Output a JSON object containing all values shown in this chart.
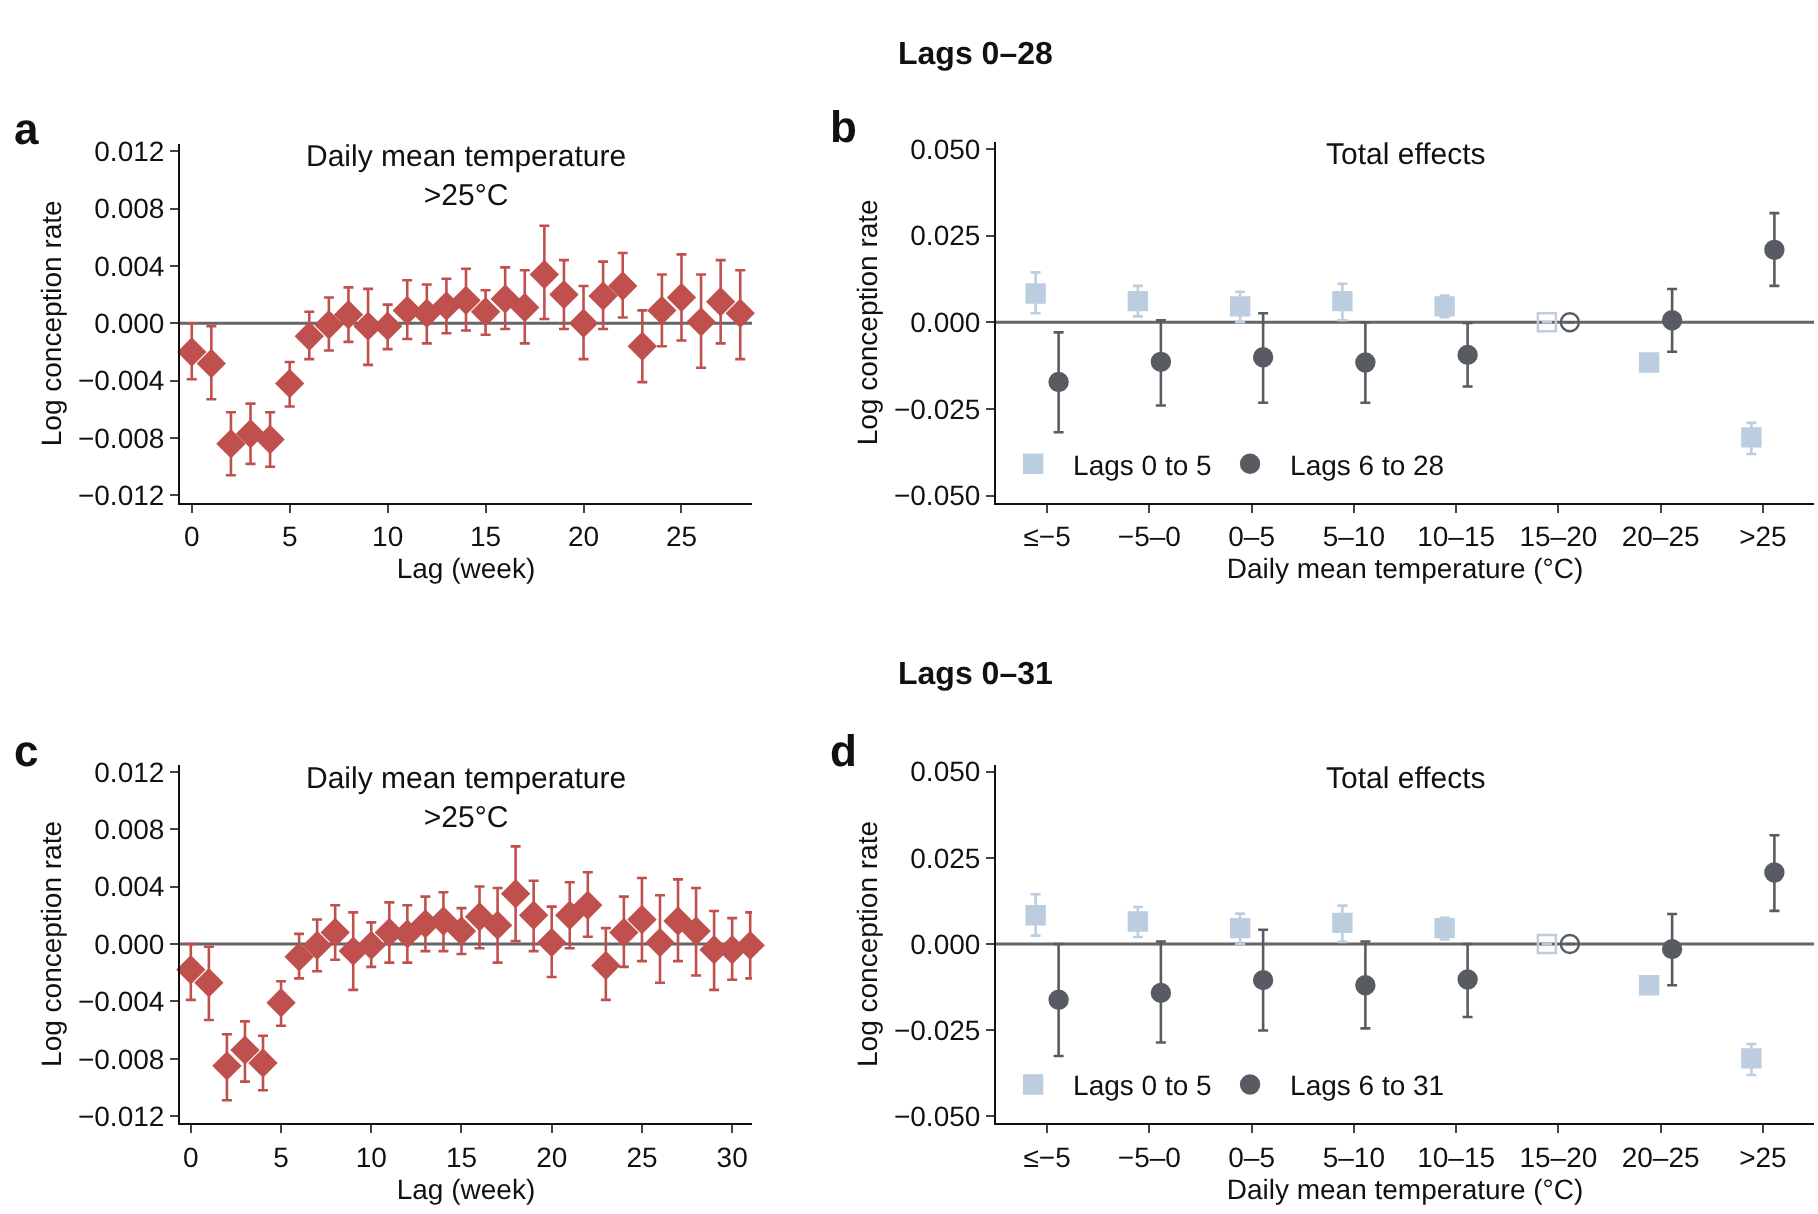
{
  "chart_data": [
    {
      "type": "scatter",
      "title": "Daily mean temperature\n>25°C",
      "xlabel": "Lag (week)",
      "ylabel": "Log conception rate",
      "annotations": [
        "a",
        "Lags 0–28"
      ],
      "x": [
        0,
        1,
        2,
        3,
        4,
        5,
        6,
        7,
        8,
        9,
        10,
        11,
        12,
        13,
        14,
        15,
        16,
        17,
        18,
        19,
        20,
        21,
        22,
        23,
        24,
        25,
        26,
        27,
        28
      ],
      "series": [
        {
          "color": "#c0504d",
          "marker": "diamond",
          "values": [
            -0.002,
            -0.0028,
            -0.0084,
            -0.0077,
            -0.0081,
            -0.0042,
            -0.0009,
            -0.0001,
            0.0006,
            -0.0002,
            -0.0002,
            0.0009,
            0.0007,
            0.0012,
            0.0016,
            0.0008,
            0.0017,
            0.0011,
            0.0034,
            0.002,
            0.0,
            0.0019,
            0.0026,
            -0.0016,
            0.0009,
            0.0018,
            0.0001,
            0.0015,
            0.0007
          ],
          "errors": [
            [
              -0.0039,
              0.0
            ],
            [
              -0.0053,
              -0.0002
            ],
            [
              -0.0106,
              -0.0062
            ],
            [
              -0.0098,
              -0.0056
            ],
            [
              -0.01,
              -0.0062
            ],
            [
              -0.0058,
              -0.0027
            ],
            [
              -0.0025,
              0.0008
            ],
            [
              -0.0019,
              0.0018
            ],
            [
              -0.0013,
              0.0025
            ],
            [
              -0.0029,
              0.0024
            ],
            [
              -0.0018,
              0.0013
            ],
            [
              -0.0011,
              0.003
            ],
            [
              -0.0014,
              0.0027
            ],
            [
              -0.0007,
              0.0031
            ],
            [
              -0.0005,
              0.0038
            ],
            [
              -0.0008,
              0.0023
            ],
            [
              -0.0004,
              0.0039
            ],
            [
              -0.0014,
              0.0037
            ],
            [
              0.0003,
              0.0068
            ],
            [
              -0.0004,
              0.0044
            ],
            [
              -0.0025,
              0.0026
            ],
            [
              -0.0004,
              0.0043
            ],
            [
              0.0004,
              0.0049
            ],
            [
              -0.0041,
              0.0009
            ],
            [
              -0.0016,
              0.0034
            ],
            [
              -0.0012,
              0.0048
            ],
            [
              -0.0031,
              0.0034
            ],
            [
              -0.0014,
              0.0044
            ],
            [
              -0.0025,
              0.0037
            ]
          ]
        }
      ],
      "xlim": [
        -0.6,
        28.6
      ],
      "xticks": [
        0,
        5,
        10,
        15,
        20,
        25
      ],
      "ylim": [
        -0.0125,
        0.0125
      ],
      "yticks": [
        {
          "value": -0.012,
          "label": "−0.012"
        },
        {
          "value": -0.008,
          "label": "−0.008"
        },
        {
          "value": -0.004,
          "label": "−0.004"
        },
        {
          "value": 0,
          "label": "0.000"
        },
        {
          "value": 0.004,
          "label": "0.004"
        },
        {
          "value": 0.008,
          "label": "0.008"
        },
        {
          "value": 0.012,
          "label": "0.012"
        }
      ],
      "ref_lines": [
        {
          "axis": "y",
          "value": 0,
          "color": "#666666"
        }
      ],
      "grid": false,
      "legend": false
    },
    {
      "type": "scatter",
      "title": "Total effects",
      "xlabel": "Daily mean temperature (°C)",
      "ylabel": "Log conception rate",
      "annotations": [
        "b"
      ],
      "categories": [
        "≤−5",
        "−5–0",
        "0–5",
        "5–10",
        "10–15",
        "15–20",
        "20–25",
        ">25"
      ],
      "series": [
        {
          "name": "Lags 0 to 5",
          "color": "#bccde0",
          "marker": "square",
          "values": [
            0.0083,
            0.0061,
            0.0046,
            0.0061,
            0.0046,
            0,
            -0.0116,
            -0.0332
          ],
          "errors": [
            [
              0.0026,
              0.0144
            ],
            [
              0.0017,
              0.0105
            ],
            [
              0.0,
              0.0088
            ],
            [
              0.0006,
              0.0111
            ],
            [
              0.0015,
              0.0077
            ],
            null,
            null,
            [
              -0.038,
              -0.029
            ]
          ]
        },
        {
          "name": "Lags 6 to 28",
          "color": "#595b63",
          "marker": "circle",
          "values": [
            -0.0172,
            -0.0114,
            -0.0101,
            -0.0116,
            -0.0094,
            0,
            0.0006,
            0.0209
          ],
          "errors": [
            [
              -0.0317,
              -0.0029
            ],
            [
              -0.024,
              0.0006
            ],
            [
              -0.0232,
              0.0026
            ],
            [
              -0.0232,
              0.0
            ],
            [
              -0.0185,
              -0.0002
            ],
            null,
            [
              -0.0085,
              0.0096
            ],
            [
              0.0105,
              0.0315
            ]
          ]
        }
      ],
      "ylim": [
        -0.052,
        0.052
      ],
      "yticks": [
        {
          "value": -0.05,
          "label": "−0.050"
        },
        {
          "value": -0.025,
          "label": "−0.025"
        },
        {
          "value": 0,
          "label": "0.000"
        },
        {
          "value": 0.025,
          "label": "0.025"
        },
        {
          "value": 0.05,
          "label": "0.050"
        }
      ],
      "ref_lines": [
        {
          "axis": "y",
          "value": 0,
          "color": "#666666"
        }
      ],
      "grid": false,
      "legend": "bottom left"
    },
    {
      "type": "scatter",
      "title": "Daily mean temperature\n>25°C",
      "xlabel": "Lag (week)",
      "ylabel": "Log conception rate",
      "annotations": [
        "c",
        "Lags 0–31"
      ],
      "x": [
        0,
        1,
        2,
        3,
        4,
        5,
        6,
        7,
        8,
        9,
        10,
        11,
        12,
        13,
        14,
        15,
        16,
        17,
        18,
        19,
        20,
        21,
        22,
        23,
        24,
        25,
        26,
        27,
        28,
        29,
        30,
        31
      ],
      "series": [
        {
          "color": "#c0504d",
          "marker": "diamond",
          "values": [
            -0.0018,
            -0.0027,
            -0.0085,
            -0.0074,
            -0.0083,
            -0.0041,
            -0.0009,
            -0.0001,
            0.0008,
            -0.0005,
            -0.0001,
            0.0008,
            0.0007,
            0.0014,
            0.0016,
            0.0009,
            0.0019,
            0.0013,
            0.0035,
            0.002,
            0.0001,
            0.002,
            0.0027,
            -0.0015,
            0.0008,
            0.0017,
            0.0001,
            0.0016,
            0.0009,
            -0.0004,
            -0.0004,
            -0.0001
          ],
          "errors": [
            [
              -0.0039,
              0.0
            ],
            [
              -0.0053,
              -0.0002
            ],
            [
              -0.0109,
              -0.0063
            ],
            [
              -0.0096,
              -0.0054
            ],
            [
              -0.0102,
              -0.0064
            ],
            [
              -0.0057,
              -0.0026
            ],
            [
              -0.0024,
              0.0007
            ],
            [
              -0.0019,
              0.0017
            ],
            [
              -0.0011,
              0.0027
            ],
            [
              -0.0032,
              0.0022
            ],
            [
              -0.0016,
              0.0015
            ],
            [
              -0.0013,
              0.0029
            ],
            [
              -0.0013,
              0.0027
            ],
            [
              -0.0005,
              0.0033
            ],
            [
              -0.0005,
              0.0036
            ],
            [
              -0.0007,
              0.0025
            ],
            [
              -0.0003,
              0.004
            ],
            [
              -0.0013,
              0.0039
            ],
            [
              0.0002,
              0.0068
            ],
            [
              -0.0005,
              0.0044
            ],
            [
              -0.0023,
              0.0026
            ],
            [
              -0.0003,
              0.0043
            ],
            [
              0.0005,
              0.005
            ],
            [
              -0.0039,
              0.0011
            ],
            [
              -0.0016,
              0.0033
            ],
            [
              -0.0012,
              0.0046
            ],
            [
              -0.0027,
              0.0034
            ],
            [
              -0.0012,
              0.0045
            ],
            [
              -0.0022,
              0.0039
            ],
            [
              -0.0032,
              0.0023
            ],
            [
              -0.0025,
              0.0018
            ],
            [
              -0.0024,
              0.0022
            ]
          ]
        }
      ],
      "xlim": [
        -0.6,
        31.1
      ],
      "xticks": [
        0,
        5,
        10,
        15,
        20,
        25,
        30
      ],
      "ylim": [
        -0.0125,
        0.0125
      ],
      "yticks": [
        {
          "value": -0.012,
          "label": "−0.012"
        },
        {
          "value": -0.008,
          "label": "−0.008"
        },
        {
          "value": -0.004,
          "label": "−0.004"
        },
        {
          "value": 0,
          "label": "0.000"
        },
        {
          "value": 0.004,
          "label": "0.004"
        },
        {
          "value": 0.008,
          "label": "0.008"
        },
        {
          "value": 0.012,
          "label": "0.012"
        }
      ],
      "ref_lines": [
        {
          "axis": "y",
          "value": 0,
          "color": "#666666"
        }
      ],
      "grid": false,
      "legend": false
    },
    {
      "type": "scatter",
      "title": "Total effects",
      "xlabel": "Daily mean temperature (°C)",
      "ylabel": "Log conception rate",
      "annotations": [
        "d"
      ],
      "categories": [
        "≤−5",
        "−5–0",
        "0–5",
        "5–10",
        "10–15",
        "15–20",
        "20–25",
        ">25"
      ],
      "series": [
        {
          "name": "Lags 0 to 5",
          "color": "#bccde0",
          "marker": "square",
          "values": [
            0.0083,
            0.0065,
            0.0046,
            0.0061,
            0.0046,
            0,
            -0.012,
            -0.0332
          ],
          "errors": [
            [
              0.0024,
              0.0144
            ],
            [
              0.002,
              0.0107
            ],
            [
              0.0,
              0.0088
            ],
            [
              0.0006,
              0.0111
            ],
            [
              0.0013,
              0.0076
            ],
            null,
            null,
            [
              -0.038,
              -0.029
            ]
          ]
        },
        {
          "name": "Lags 6 to 31",
          "color": "#595b63",
          "marker": "circle",
          "values": [
            -0.0162,
            -0.0142,
            -0.0105,
            -0.012,
            -0.0103,
            0,
            -0.0015,
            0.0207
          ],
          "errors": [
            [
              -0.0325,
              0.0
            ],
            [
              -0.0286,
              0.0007
            ],
            [
              -0.0251,
              0.0041
            ],
            [
              -0.0245,
              0.0007
            ],
            [
              -0.0212,
              0.0
            ],
            null,
            [
              -0.012,
              0.0087
            ],
            [
              0.0096,
              0.0315
            ]
          ]
        }
      ],
      "ylim": [
        -0.052,
        0.052
      ],
      "yticks": [
        {
          "value": -0.05,
          "label": "−0.050"
        },
        {
          "value": -0.025,
          "label": "−0.025"
        },
        {
          "value": 0,
          "label": "0.000"
        },
        {
          "value": 0.025,
          "label": "0.025"
        },
        {
          "value": 0.05,
          "label": "0.050"
        }
      ],
      "ref_lines": [
        {
          "axis": "y",
          "value": 0,
          "color": "#666666"
        }
      ],
      "grid": false,
      "legend": "bottom left"
    }
  ]
}
